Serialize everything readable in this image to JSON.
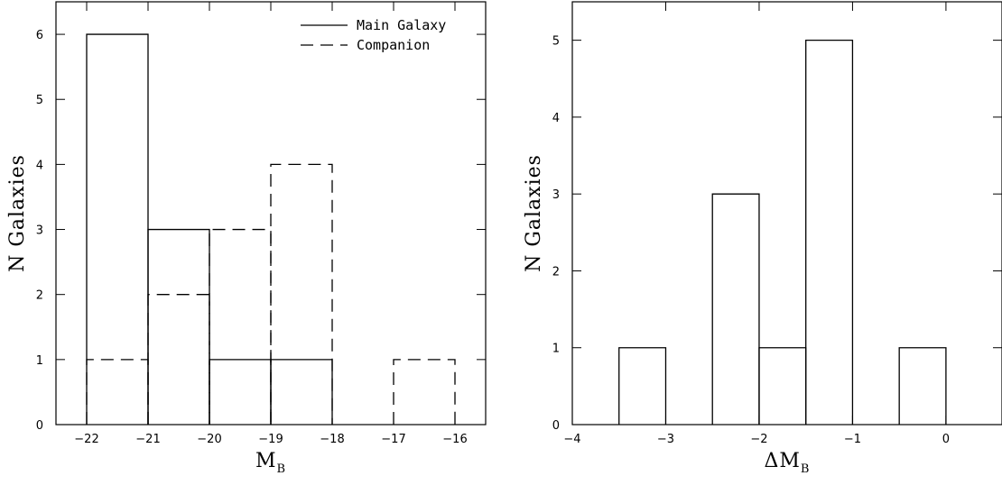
{
  "chart_data": [
    {
      "type": "histogram",
      "title": "",
      "xlabel": "M",
      "xlabel_sub": "B",
      "ylabel": "N Galaxies",
      "xlim": [
        -22.5,
        -15.5
      ],
      "ylim": [
        0,
        6.5
      ],
      "xticks": [
        -22,
        -21,
        -20,
        -19,
        -18,
        -17,
        -16
      ],
      "yticks": [
        0,
        1,
        2,
        3,
        4,
        5,
        6
      ],
      "legend_position": "top-right",
      "series": [
        {
          "name": "Main Galaxy",
          "style": "solid",
          "bins": [
            {
              "lo": -22,
              "hi": -21,
              "count": 6
            },
            {
              "lo": -21,
              "hi": -20,
              "count": 3
            },
            {
              "lo": -20,
              "hi": -19,
              "count": 1
            },
            {
              "lo": -19,
              "hi": -18,
              "count": 1
            }
          ]
        },
        {
          "name": "Companion",
          "style": "dashed",
          "bins": [
            {
              "lo": -22,
              "hi": -21,
              "count": 1
            },
            {
              "lo": -21,
              "hi": -20,
              "count": 2
            },
            {
              "lo": -20,
              "hi": -19,
              "count": 3
            },
            {
              "lo": -19,
              "hi": -18,
              "count": 4
            },
            {
              "lo": -17,
              "hi": -16,
              "count": 1
            }
          ]
        }
      ]
    },
    {
      "type": "histogram",
      "title": "",
      "xlabel": "ΔM",
      "xlabel_sub": "B",
      "ylabel": "N Galaxies",
      "xlim": [
        -4,
        0.6
      ],
      "ylim": [
        0,
        5.5
      ],
      "xticks": [
        -4,
        -3,
        -2,
        -1,
        0
      ],
      "yticks": [
        0,
        1,
        2,
        3,
        4,
        5
      ],
      "series": [
        {
          "name": "",
          "style": "solid",
          "bins": [
            {
              "lo": -3.5,
              "hi": -3.0,
              "count": 1
            },
            {
              "lo": -2.5,
              "hi": -2.0,
              "count": 3
            },
            {
              "lo": -2.0,
              "hi": -1.5,
              "count": 1
            },
            {
              "lo": -1.5,
              "hi": -1.0,
              "count": 5
            },
            {
              "lo": -0.5,
              "hi": 0.0,
              "count": 1
            }
          ]
        }
      ]
    }
  ]
}
